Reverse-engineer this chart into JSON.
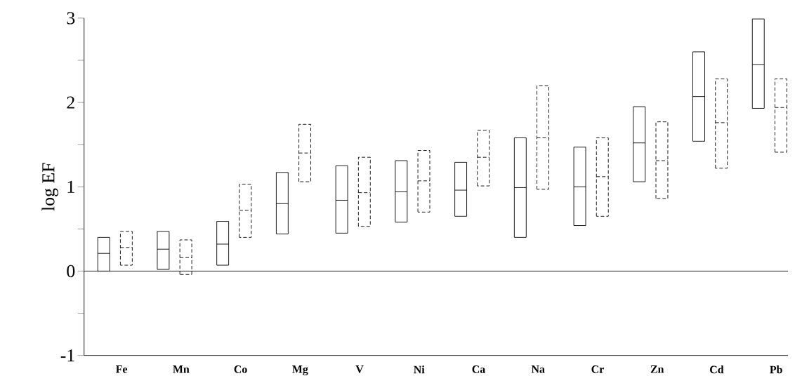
{
  "chart_data": {
    "type": "box",
    "ylabel": "log EF",
    "categories": [
      "Fe",
      "Mn",
      "Co",
      "Mg",
      "V",
      "Ni",
      "Ca",
      "Na",
      "Cr",
      "Zn",
      "Cd",
      "Pb"
    ],
    "ylim": [
      -1,
      3
    ],
    "yticks": [
      -1,
      {
        "value": -0.5,
        "label": null
      },
      0,
      {
        "value": 0.5,
        "label": null
      },
      1,
      {
        "value": 1.5,
        "label": null
      },
      2,
      {
        "value": 2.5,
        "label": null
      },
      3
    ],
    "ref_lines": [
      {
        "axis": "y",
        "value": 0,
        "color": "#000000",
        "line_style": "solid"
      }
    ],
    "series": [
      {
        "color": "#000000",
        "line_style": "solid",
        "boxes": [
          {
            "low": 0,
            "q1": 0,
            "median": 0.21,
            "q3": 0.4,
            "high": 0.4
          },
          {
            "low": 0.02,
            "q1": 0.02,
            "median": 0.26,
            "q3": 0.47,
            "high": 0.47
          },
          {
            "low": 0.07,
            "q1": 0.07,
            "median": 0.32,
            "q3": 0.59,
            "high": 0.59
          },
          {
            "low": 0.44,
            "q1": 0.44,
            "median": 0.8,
            "q3": 1.17,
            "high": 1.17
          },
          {
            "low": 0.45,
            "q1": 0.45,
            "median": 0.84,
            "q3": 1.25,
            "high": 1.25
          },
          {
            "low": 0.58,
            "q1": 0.58,
            "median": 0.94,
            "q3": 1.31,
            "high": 1.31
          },
          {
            "low": 0.65,
            "q1": 0.65,
            "median": 0.96,
            "q3": 1.29,
            "high": 1.29
          },
          {
            "low": 0.4,
            "q1": 0.4,
            "median": 0.99,
            "q3": 1.58,
            "high": 1.58
          },
          {
            "low": 0.54,
            "q1": 0.54,
            "median": 1.0,
            "q3": 1.47,
            "high": 1.47
          },
          {
            "low": 1.06,
            "q1": 1.06,
            "median": 1.52,
            "q3": 1.95,
            "high": 1.95
          },
          {
            "low": 1.54,
            "q1": 1.54,
            "median": 2.07,
            "q3": 2.6,
            "high": 2.6
          },
          {
            "low": 1.93,
            "q1": 1.93,
            "median": 2.45,
            "q3": 2.99,
            "high": 2.99
          }
        ]
      },
      {
        "color": "#000000",
        "line_style": "dashed",
        "boxes": [
          {
            "low": 0.07,
            "q1": 0.07,
            "median": 0.28,
            "q3": 0.47,
            "high": 0.47
          },
          {
            "low": -0.04,
            "q1": -0.04,
            "median": 0.16,
            "q3": 0.37,
            "high": 0.37
          },
          {
            "low": 0.4,
            "q1": 0.4,
            "median": 0.72,
            "q3": 1.03,
            "high": 1.03
          },
          {
            "low": 1.06,
            "q1": 1.06,
            "median": 1.4,
            "q3": 1.74,
            "high": 1.74
          },
          {
            "low": 0.53,
            "q1": 0.53,
            "median": 0.93,
            "q3": 1.35,
            "high": 1.35
          },
          {
            "low": 0.7,
            "q1": 0.7,
            "median": 1.07,
            "q3": 1.43,
            "high": 1.43
          },
          {
            "low": 1.01,
            "q1": 1.01,
            "median": 1.35,
            "q3": 1.67,
            "high": 1.67
          },
          {
            "low": 0.97,
            "q1": 0.97,
            "median": 1.58,
            "q3": 2.2,
            "high": 2.2
          },
          {
            "low": 0.65,
            "q1": 0.65,
            "median": 1.12,
            "q3": 1.58,
            "high": 1.58
          },
          {
            "low": 0.86,
            "q1": 0.86,
            "median": 1.31,
            "q3": 1.77,
            "high": 1.77
          },
          {
            "low": 1.22,
            "q1": 1.22,
            "median": 1.76,
            "q3": 2.28,
            "high": 2.28
          },
          {
            "low": 1.41,
            "q1": 1.41,
            "median": 1.94,
            "q3": 2.28,
            "high": 2.28
          }
        ]
      }
    ]
  }
}
